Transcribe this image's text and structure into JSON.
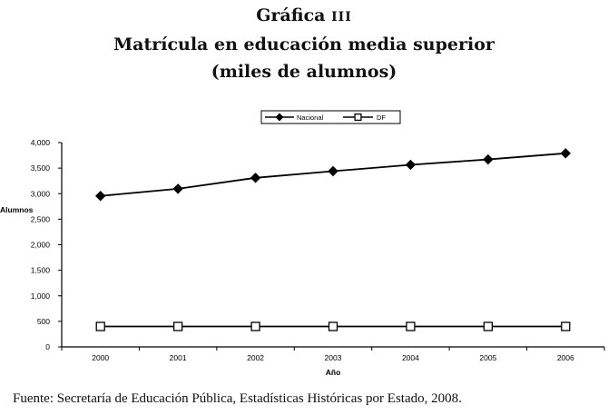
{
  "title": {
    "label": "Gráfica",
    "number": "III",
    "line2": "Matrícula en educación media superior",
    "line3": "(miles de alumnos)"
  },
  "chart_data": {
    "type": "line",
    "categories": [
      "2000",
      "2001",
      "2002",
      "2003",
      "2004",
      "2005",
      "2006"
    ],
    "series": [
      {
        "name": "Nacional",
        "values": [
          2955,
          3095,
          3310,
          3440,
          3565,
          3670,
          3790
        ],
        "marker": "filled-diamond",
        "color": "#000000"
      },
      {
        "name": "DF",
        "values": [
          400,
          400,
          400,
          400,
          400,
          400,
          400
        ],
        "marker": "open-square",
        "color": "#000000"
      }
    ],
    "yticks": [
      0,
      500,
      1000,
      1500,
      2000,
      2500,
      3000,
      3500,
      4000
    ],
    "ytick_labels": [
      "0",
      "500",
      "1,000",
      "1,500",
      "2,000",
      "2,500",
      "3,000",
      "3,500",
      "4,000"
    ],
    "ylim": [
      0,
      4000
    ],
    "xlabel": "Año",
    "ylabel": "Alumnos",
    "legend_position": "top-center",
    "grid": false
  },
  "source": "Fuente: Secretaría de Educación Pública, Estadísticas Históricas por Estado, 2008."
}
